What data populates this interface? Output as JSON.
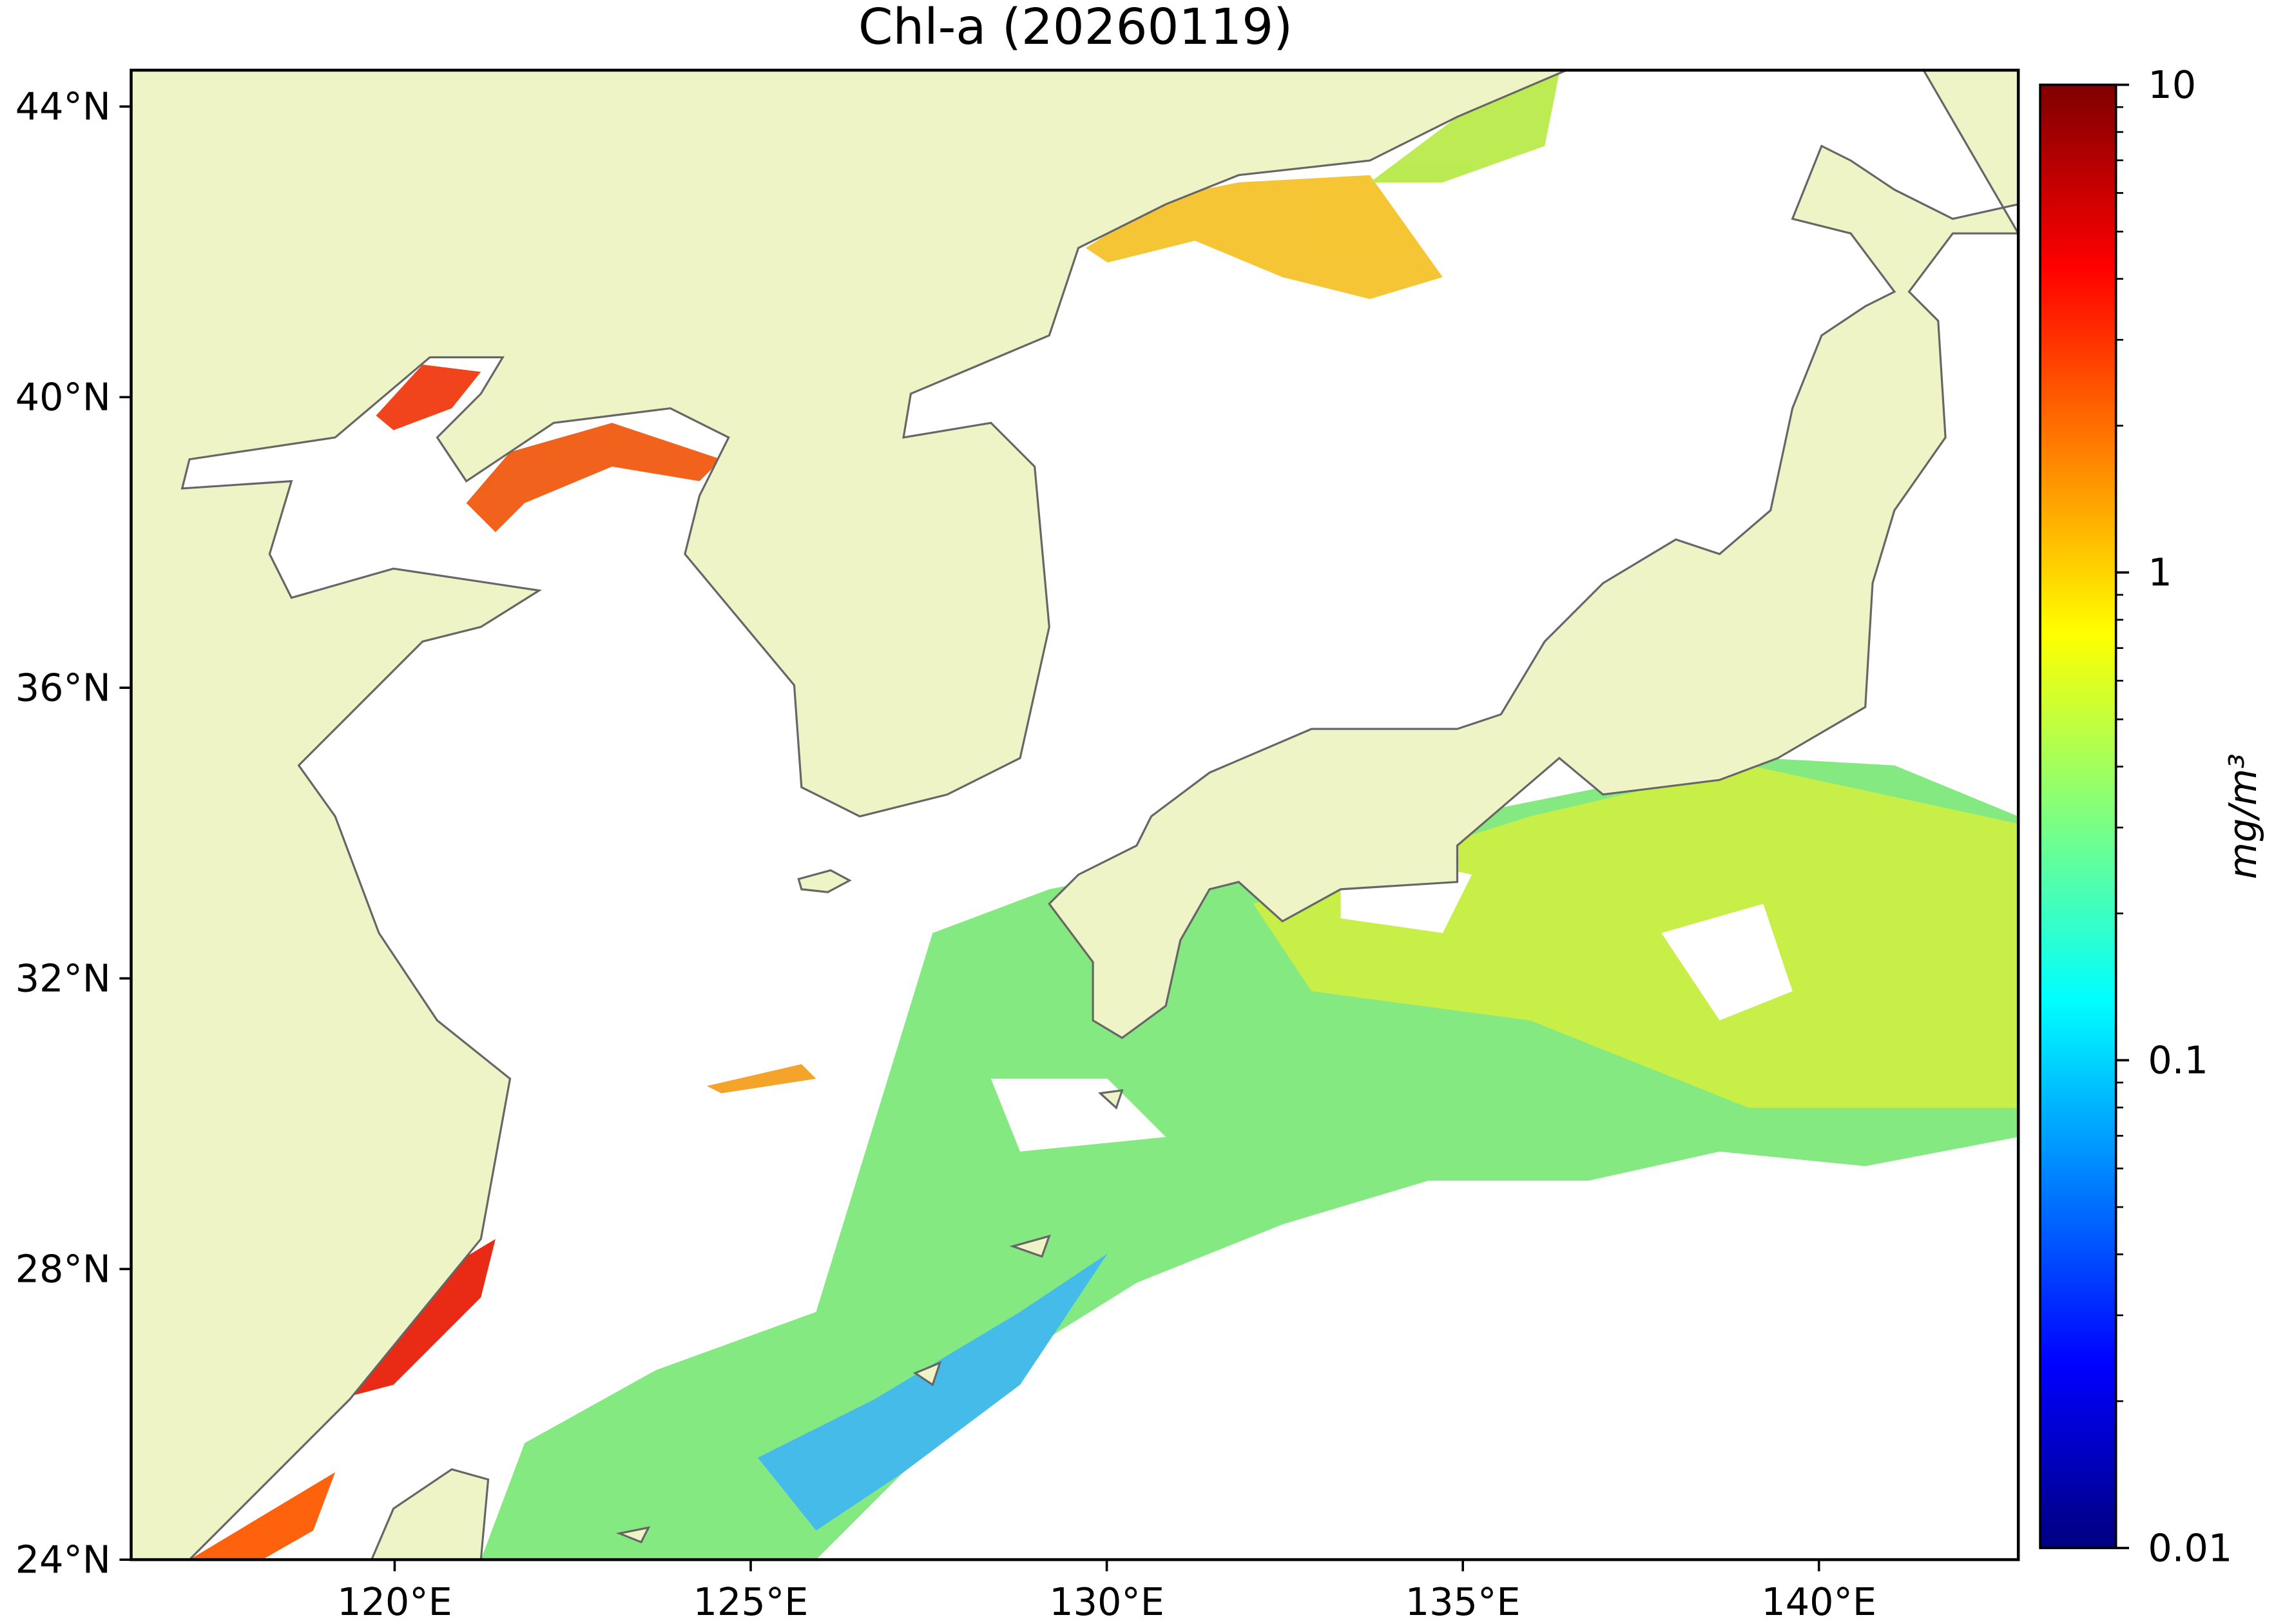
{
  "chart_data": {
    "type": "map",
    "title": "Chl-a (20260119)",
    "xlim": [
      116.3,
      142.8
    ],
    "ylim": [
      24,
      44.5
    ],
    "xticks": [
      {
        "value": 120,
        "label": "120°E"
      },
      {
        "value": 125,
        "label": "125°E"
      },
      {
        "value": 130,
        "label": "130°E"
      },
      {
        "value": 135,
        "label": "135°E"
      },
      {
        "value": 140,
        "label": "140°E"
      }
    ],
    "yticks": [
      {
        "value": 24,
        "label": "24°N"
      },
      {
        "value": 28,
        "label": "28°N"
      },
      {
        "value": 32,
        "label": "32°N"
      },
      {
        "value": 36,
        "label": "36°N"
      },
      {
        "value": 40,
        "label": "40°N"
      },
      {
        "value": 44,
        "label": "44°N"
      }
    ],
    "land_color": "#eff4c6",
    "colorbar": {
      "label": "mg/m³",
      "scale": "log",
      "lim": [
        0.01,
        10
      ],
      "ticks": [
        0.01,
        0.1,
        1,
        10
      ],
      "colormap": [
        "#00007f",
        "#0000ff",
        "#007fff",
        "#00ffff",
        "#7fff7f",
        "#ffff00",
        "#ff7f00",
        "#ff0000",
        "#7f0000"
      ]
    }
  }
}
